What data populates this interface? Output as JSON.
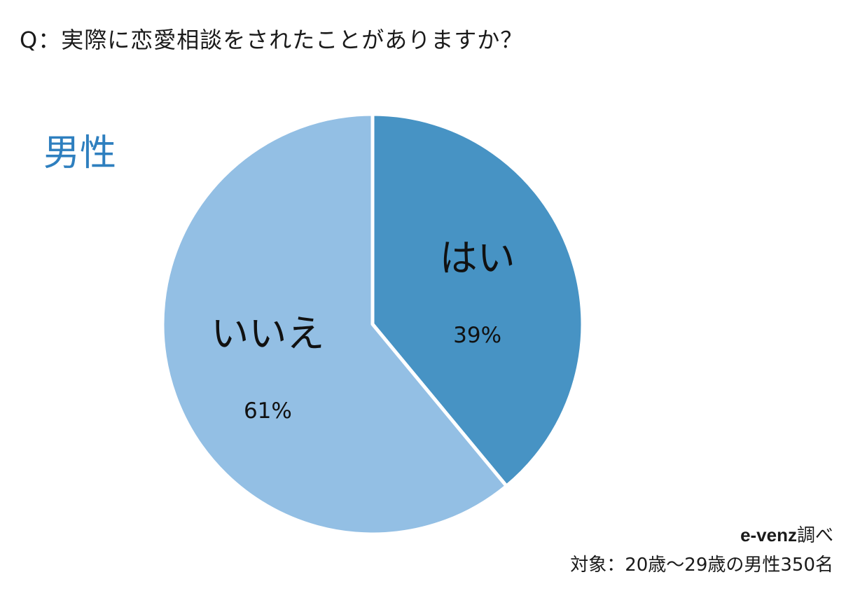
{
  "question": "Q：実際に恋愛相談をされたことがありますか？",
  "group_label": "男性",
  "source": {
    "brand": "e-venz",
    "suffix": "調べ",
    "target": "対象：20歳〜29歳の男性350名"
  },
  "colors": {
    "yes": "#4793c4",
    "no": "#93bfe4",
    "group_label": "#2e7fbf"
  },
  "chart_data": {
    "type": "pie",
    "start_angle_deg": 0,
    "direction": "clockwise",
    "slices": [
      {
        "label": "はい",
        "value": 39,
        "display": "39%",
        "color": "#4793c4"
      },
      {
        "label": "いいえ",
        "value": 61,
        "display": "61%",
        "color": "#93bfe4"
      }
    ]
  }
}
